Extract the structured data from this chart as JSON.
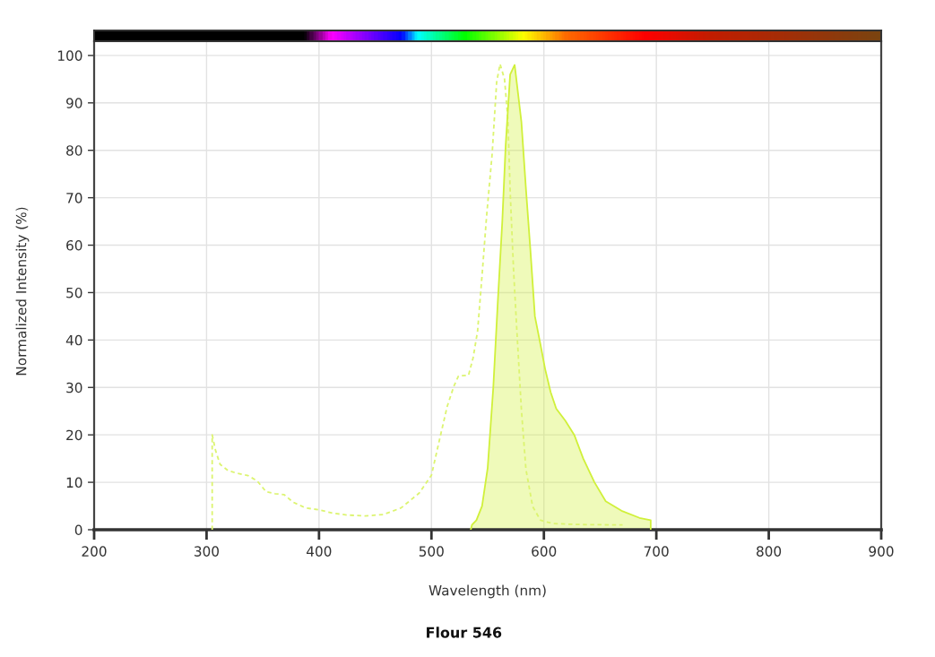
{
  "chart_data": {
    "type": "line",
    "title": "Flour 546",
    "xlabel": "Wavelength (nm)",
    "ylabel": "Normalized Intensity (%)",
    "xlim": [
      200,
      900
    ],
    "ylim": [
      0,
      103
    ],
    "xticks": [
      200,
      300,
      400,
      500,
      600,
      700,
      800,
      900
    ],
    "yticks": [
      0,
      10,
      20,
      30,
      40,
      50,
      60,
      70,
      80,
      90,
      100
    ],
    "grid": true,
    "series": [
      {
        "line_style": "dashed",
        "color": "#dcf470",
        "x": [
          305,
          305,
          308,
          312,
          319,
          327,
          337,
          345,
          353,
          361,
          369,
          377,
          388,
          400,
          412,
          425,
          441,
          457,
          473,
          489,
          500,
          507,
          514,
          520,
          524,
          533,
          537,
          541,
          545,
          549,
          554,
          558,
          561,
          565,
          568,
          570,
          573,
          576,
          580,
          584,
          590,
          597,
          608,
          630,
          670
        ],
        "values": [
          0,
          20,
          16.7,
          13.8,
          12.5,
          11.9,
          11.4,
          10.3,
          8,
          7.6,
          7.4,
          5.8,
          4.6,
          4.2,
          3.5,
          3.1,
          2.9,
          3.2,
          4.6,
          7.7,
          11.5,
          18.8,
          26,
          30.3,
          32.4,
          32.6,
          36.2,
          41.8,
          53.6,
          66,
          79.3,
          94.4,
          98.2,
          95,
          86.5,
          71.4,
          54.9,
          41.8,
          25.3,
          12.8,
          4.9,
          2,
          1.3,
          1.1,
          1
        ]
      },
      {
        "type": "area",
        "line_style": "solid",
        "color": "#d0f03a",
        "x": [
          535,
          536,
          540,
          545,
          550,
          555,
          559,
          563,
          566,
          570,
          574,
          580,
          584,
          588,
          592,
          597,
          601,
          606,
          611,
          619,
          627,
          635,
          645,
          655,
          669,
          685,
          695,
          695
        ],
        "values": [
          0,
          1,
          2,
          5,
          13,
          30,
          48,
          65,
          81,
          96,
          98,
          86,
          72,
          59,
          45,
          39,
          34,
          29,
          25.5,
          23,
          20,
          15,
          10,
          6,
          4,
          2.5,
          2,
          0
        ]
      }
    ]
  }
}
